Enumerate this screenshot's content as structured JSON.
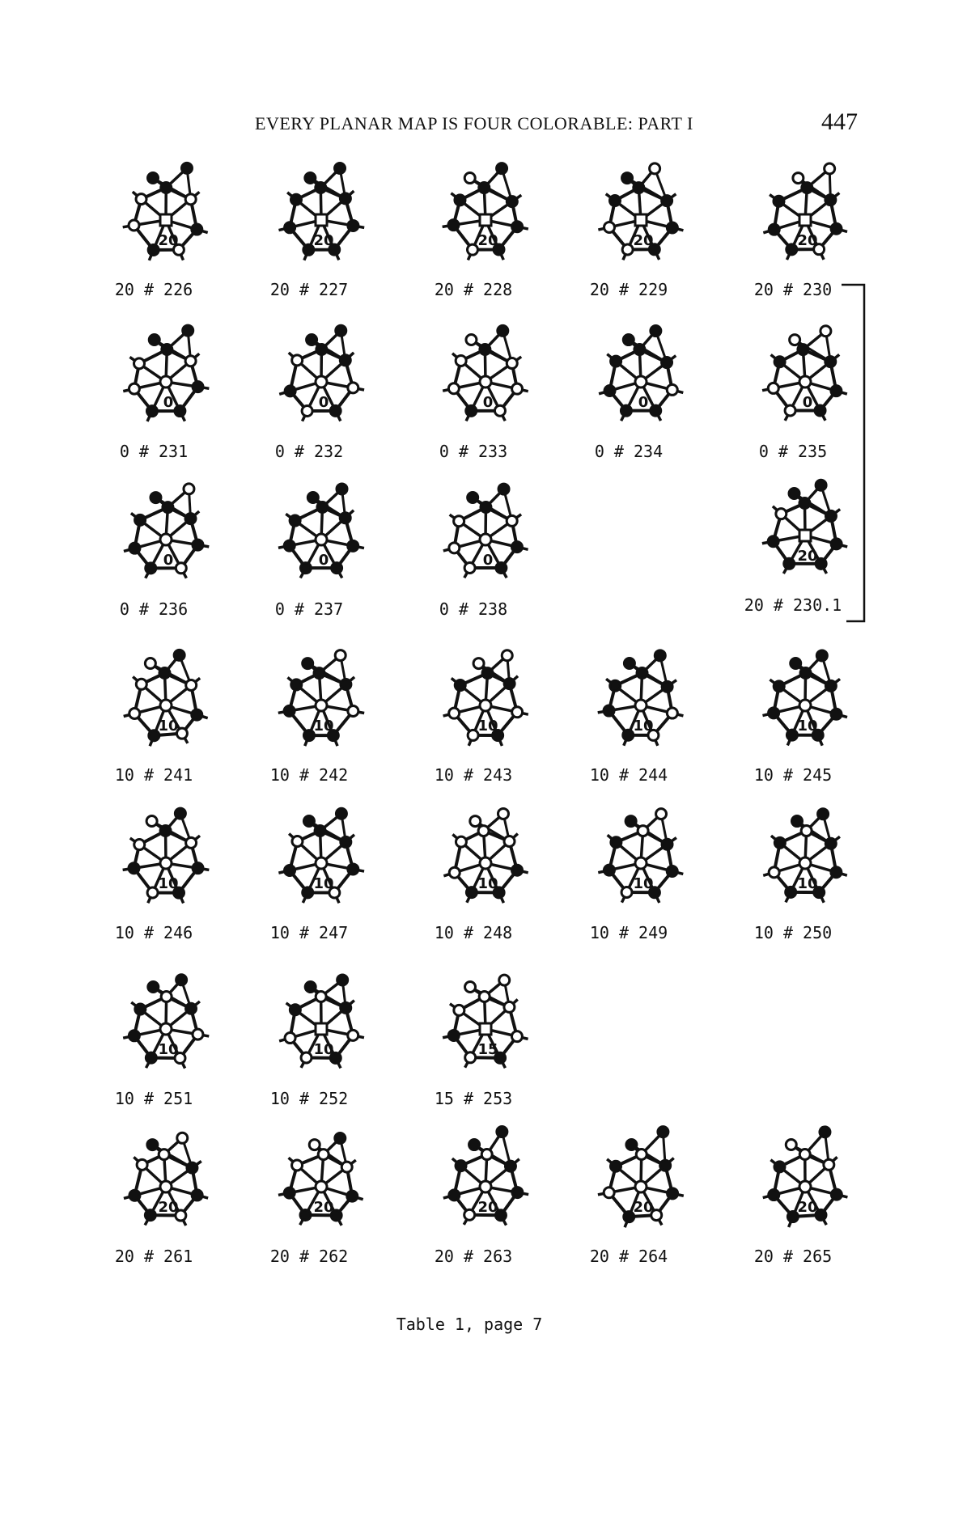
{
  "header": {
    "running_head": "EVERY PLANAR MAP IS FOUR COLORABLE: PART I",
    "page_number": "447"
  },
  "rows": [
    {
      "configurations": [
        {
          "label": "20 # 226",
          "center_mark": "20",
          "center_shape": "square"
        },
        {
          "label": "20 # 227",
          "center_mark": "20",
          "center_shape": "square"
        },
        {
          "label": "20 # 228",
          "center_mark": "20",
          "center_shape": "square"
        },
        {
          "label": "20 # 229",
          "center_mark": "20",
          "center_shape": "square"
        },
        {
          "label": "20 # 230",
          "center_mark": "20",
          "center_shape": "square"
        }
      ]
    },
    {
      "configurations": [
        {
          "label": "0 # 231",
          "center_mark": "0",
          "center_shape": "circle"
        },
        {
          "label": "0 # 232",
          "center_mark": "0",
          "center_shape": "circle"
        },
        {
          "label": "0 # 233",
          "center_mark": "0",
          "center_shape": "circle"
        },
        {
          "label": "0 # 234",
          "center_mark": "0",
          "center_shape": "circle"
        },
        {
          "label": "0 # 235",
          "center_mark": "0",
          "center_shape": "circle"
        }
      ]
    },
    {
      "configurations": [
        {
          "label": "0 # 236",
          "center_mark": "0",
          "center_shape": "circle"
        },
        {
          "label": "0 # 237",
          "center_mark": "0",
          "center_shape": "circle"
        },
        {
          "label": "0 # 238",
          "center_mark": "0",
          "center_shape": "circle"
        },
        {
          "label": "20 # 230.1",
          "center_mark": "20",
          "center_shape": "square"
        }
      ]
    },
    {
      "configurations": [
        {
          "label": "10 # 241",
          "center_mark": "10",
          "center_shape": "circle"
        },
        {
          "label": "10 # 242",
          "center_mark": "10",
          "center_shape": "circle"
        },
        {
          "label": "10 # 243",
          "center_mark": "10",
          "center_shape": "circle"
        },
        {
          "label": "10 # 244",
          "center_mark": "10",
          "center_shape": "circle"
        },
        {
          "label": "10 # 245",
          "center_mark": "10",
          "center_shape": "circle"
        }
      ]
    },
    {
      "configurations": [
        {
          "label": "10 # 246",
          "center_mark": "10",
          "center_shape": "circle"
        },
        {
          "label": "10 # 247",
          "center_mark": "10",
          "center_shape": "circle"
        },
        {
          "label": "10 # 248",
          "center_mark": "10",
          "center_shape": "circle"
        },
        {
          "label": "10 # 249",
          "center_mark": "10",
          "center_shape": "circle"
        },
        {
          "label": "10 # 250",
          "center_mark": "10",
          "center_shape": "circle"
        }
      ]
    },
    {
      "configurations": [
        {
          "label": "10 # 251",
          "center_mark": "10",
          "center_shape": "circle"
        },
        {
          "label": "10 # 252",
          "center_mark": "10",
          "center_shape": "square"
        },
        {
          "label": "15 # 253",
          "center_mark": "15",
          "center_shape": "square"
        }
      ]
    },
    {
      "configurations": [
        {
          "label": "20 # 261",
          "center_mark": "20",
          "center_shape": "circle"
        },
        {
          "label": "20 # 262",
          "center_mark": "20",
          "center_shape": "circle"
        },
        {
          "label": "20 # 263",
          "center_mark": "20",
          "center_shape": "circle"
        },
        {
          "label": "20 # 264",
          "center_mark": "20",
          "center_shape": "circle"
        },
        {
          "label": "20 # 265",
          "center_mark": "20",
          "center_shape": "circle"
        }
      ]
    }
  ],
  "caption": "Table 1, page 7"
}
